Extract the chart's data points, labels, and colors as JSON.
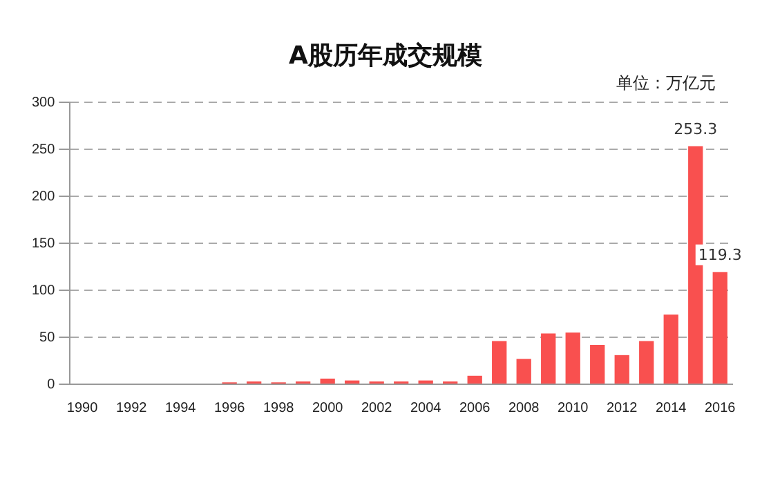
{
  "chart_data": {
    "type": "bar",
    "title": "A股历年成交规模",
    "annotations": [
      "单位：万亿元"
    ],
    "categories": [
      "1990",
      null,
      "1992",
      null,
      "1994",
      null,
      "1996",
      null,
      "1998",
      null,
      "2000",
      null,
      "2002",
      null,
      "2004",
      null,
      "2006",
      null,
      "2008",
      null,
      "2010",
      null,
      "2012",
      null,
      "2014",
      null,
      "2016"
    ],
    "values": [
      0,
      0,
      0,
      0,
      0,
      0,
      2,
      3,
      2,
      3,
      6,
      4,
      3,
      3,
      4,
      3,
      9,
      46,
      27,
      54,
      55,
      42,
      31,
      46,
      74,
      253.3,
      119.3
    ],
    "value_labels": [
      null,
      null,
      null,
      null,
      null,
      null,
      null,
      null,
      null,
      null,
      null,
      null,
      null,
      null,
      null,
      null,
      null,
      null,
      null,
      null,
      null,
      null,
      null,
      null,
      null,
      "253.3",
      "119.3"
    ],
    "color": "#f9504f",
    "ylim": [
      0,
      300
    ],
    "yticks": [
      0,
      50,
      100,
      150,
      200,
      250,
      300
    ],
    "grid": "y",
    "legend": false
  }
}
